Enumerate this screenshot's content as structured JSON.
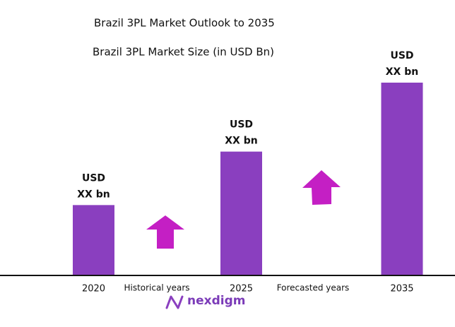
{
  "chart_data": {
    "type": "bar",
    "title": "Brazil 3PL Market Outlook to 2035",
    "subtitle": "Brazil 3PL Market Size (in USD Bn)",
    "categories": [
      "2020",
      "2025",
      "2035"
    ],
    "values": [
      99,
      175,
      273
    ],
    "bar_labels": [
      [
        "USD",
        "XX bn"
      ],
      [
        "USD",
        "XX bn"
      ],
      [
        "USD",
        "XX bn"
      ]
    ],
    "color": "#8a3fbf",
    "annotations": [
      "Historical years",
      "Forecasted years"
    ],
    "logo": "nexdigm"
  }
}
